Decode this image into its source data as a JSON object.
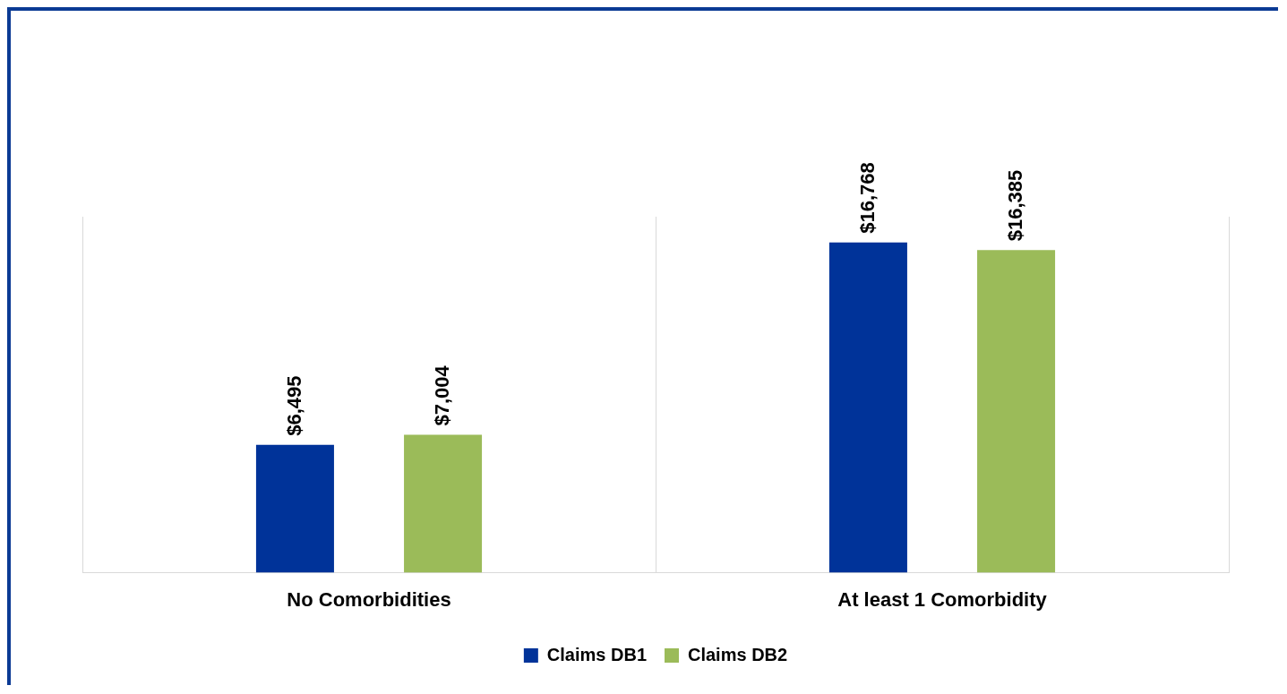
{
  "chart_data": {
    "type": "bar",
    "categories": [
      "No Comorbidities",
      "At least 1 Comorbidity"
    ],
    "series": [
      {
        "name": "Claims DB1",
        "color": "#003399",
        "values": [
          6495,
          16768
        ],
        "value_labels": [
          "$6,495",
          "$16,768"
        ]
      },
      {
        "name": "Claims DB2",
        "color": "#9bbb59",
        "values": [
          7004,
          16385
        ],
        "value_labels": [
          "$7,004",
          "$16,385"
        ]
      }
    ],
    "grid": "x",
    "legend": "bottom",
    "tick_labels": "x"
  }
}
